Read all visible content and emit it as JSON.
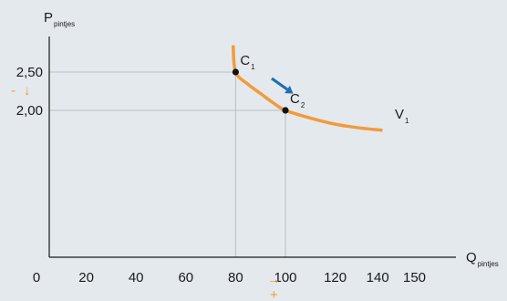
{
  "chart_data": {
    "type": "line",
    "xaxis": {
      "label_main": "Q",
      "label_sub": "pintjes",
      "range": [
        0,
        155
      ],
      "ticks": [
        "0",
        "20",
        "40",
        "60",
        "80",
        "100",
        "120",
        "140",
        "150"
      ],
      "tick_values": [
        0,
        20,
        40,
        60,
        80,
        100,
        120,
        140,
        150
      ]
    },
    "yaxis": {
      "label_main": "P",
      "label_sub": "pintjes",
      "range": [
        0,
        3.0
      ],
      "ticks": [
        "2,50",
        "2,00"
      ],
      "tick_values": [
        2.5,
        2.0
      ]
    },
    "series": [
      {
        "name_main": "V",
        "name_sub": "1",
        "color": "#f39a3c",
        "x": [
          79,
          80,
          85,
          90,
          95,
          100,
          110,
          120,
          130,
          139
        ],
        "y": [
          2.85,
          2.5,
          2.34,
          2.22,
          2.1,
          2.0,
          1.9,
          1.82,
          1.77,
          1.74
        ]
      }
    ],
    "points": [
      {
        "label_main": "C",
        "label_sub": "1",
        "x": 80,
        "y": 2.5
      },
      {
        "label_main": "C",
        "label_sub": "2",
        "x": 100,
        "y": 2.0
      }
    ],
    "annotations": {
      "price_change": {
        "sign": "-",
        "arrow": "↓",
        "color": "#f39a3c"
      },
      "quantity_change": {
        "arrow": "→",
        "sign": "+",
        "color": "#f39a3c"
      },
      "movement_arrow_color": "#1f6fb2"
    },
    "grid": false,
    "guide_lines": true
  }
}
